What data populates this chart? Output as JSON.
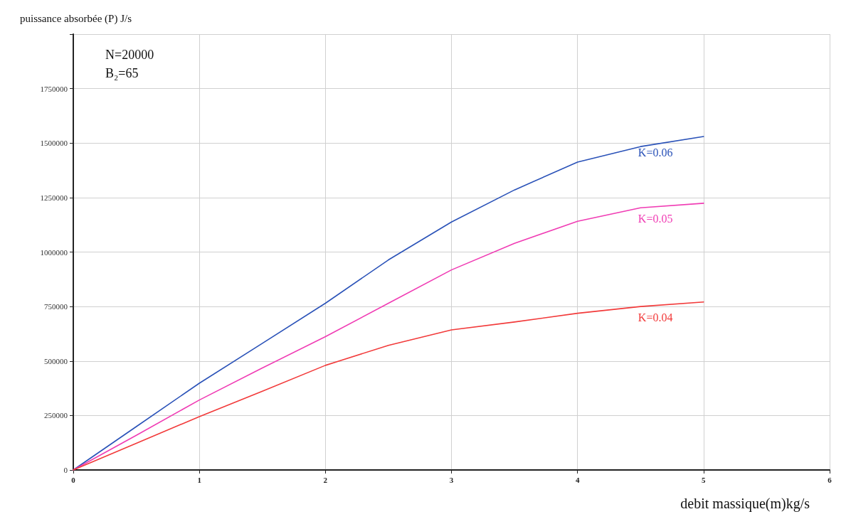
{
  "chart_data": {
    "type": "line",
    "ylabel": "puissance absorbée (P) J/s",
    "xlabel": "debit massique(m)kg/s",
    "xlim": [
      0,
      6
    ],
    "xticks": [
      0,
      1,
      2,
      3,
      4,
      5,
      6
    ],
    "ylim": [
      0,
      2000000
    ],
    "yticks": [
      0,
      250000,
      500000,
      750000,
      1000000,
      1250000,
      1500000,
      1750000,
      {
        "value": 2000000,
        "label": null
      }
    ],
    "grid": true,
    "marker": "none",
    "line_style": "solid",
    "legend": false,
    "series": [
      {
        "name": "K=0.06",
        "color": "#2a52b8",
        "x": [
          0,
          0.5,
          1,
          1.5,
          2,
          2.5,
          3,
          3.5,
          4,
          4.5,
          5
        ],
        "values": [
          0,
          199000,
          398000,
          581000,
          765000,
          964000,
          1138000,
          1285000,
          1413000,
          1484000,
          1530000
        ]
      },
      {
        "name": "K=0.05",
        "color": "#f03cb4",
        "x": [
          0,
          0.5,
          1,
          1.5,
          2,
          2.5,
          3,
          3.5,
          4,
          4.5,
          5
        ],
        "values": [
          0,
          159000,
          321000,
          468000,
          612000,
          765000,
          918000,
          1040000,
          1141000,
          1203000,
          1224000
        ]
      },
      {
        "name": "K=0.04",
        "color": "#f23a3a",
        "x": [
          0,
          0.5,
          1,
          1.5,
          2,
          2.5,
          3,
          3.5,
          4,
          4.5,
          5
        ],
        "values": [
          0,
          122000,
          245000,
          361000,
          480000,
          572000,
          643000,
          679000,
          719000,
          750000,
          771000
        ]
      }
    ],
    "annotations": [
      "N=20000",
      "B₂=65"
    ]
  }
}
